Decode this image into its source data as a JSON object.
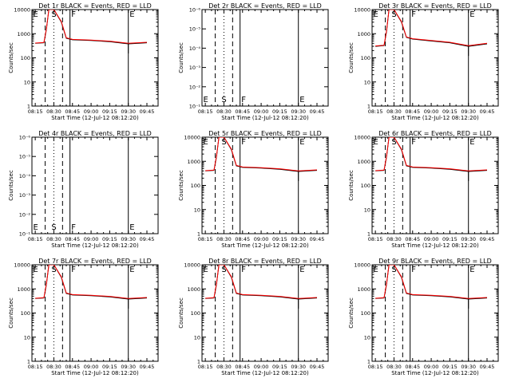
{
  "common": {
    "xlabel": "Start Time (12-Jul-12 08:12:20)",
    "ylabel": "Counts/sec",
    "xticks": [
      "08:15",
      "08:30",
      "08:45",
      "09:00",
      "09:15",
      "09:30",
      "09:45"
    ],
    "yticks_counts": [
      "1",
      "10",
      "100",
      "1000",
      "10000"
    ],
    "yticks_empty": [
      "10⁻¹",
      "10⁻²",
      "10⁻³",
      "10⁻⁴",
      "10⁻⁵",
      "10⁻⁶"
    ],
    "colors": {
      "events": "#000000",
      "lld": "#ff0000"
    }
  },
  "chart_data": [
    {
      "type": "line",
      "title": "Det 1r BLACK = Events, RED = LLD",
      "xlabel": "Start Time (12-Jul-12 08:12:20)",
      "ylabel": "Counts/sec",
      "yscale": "log",
      "ylim": [
        1,
        10000
      ],
      "xticks": [
        "08:15",
        "08:30",
        "08:45",
        "09:00",
        "09:15",
        "09:30",
        "09:45"
      ],
      "markers": [
        "E",
        "S",
        "F",
        "E"
      ],
      "series": [
        {
          "name": "Events",
          "color": "#000000",
          "x": [
            "08:15",
            "08:22",
            "08:24",
            "08:26",
            "08:30",
            "08:36",
            "08:40",
            "08:45",
            "09:00",
            "09:15",
            "09:30",
            "09:45"
          ],
          "values": [
            400,
            420,
            1500,
            10000,
            10000,
            3000,
            650,
            560,
            520,
            470,
            380,
            420
          ]
        },
        {
          "name": "LLD",
          "color": "#ff0000",
          "x": [
            "08:15",
            "08:22",
            "08:24",
            "08:26",
            "08:30",
            "08:36",
            "08:40",
            "08:45",
            "09:00",
            "09:15",
            "09:30",
            "09:45"
          ],
          "values": [
            410,
            430,
            1600,
            10000,
            10000,
            3200,
            680,
            580,
            540,
            490,
            400,
            440
          ]
        }
      ]
    },
    {
      "type": "line",
      "title": "Det 2r BLACK = Events, RED = LLD",
      "xlabel": "Start Time (12-Jul-12 08:12:20)",
      "ylabel": "Counts/sec",
      "yscale": "log",
      "xticks": [
        "08:15",
        "08:30",
        "08:45",
        "09:00",
        "09:15",
        "09:30",
        "09:45"
      ],
      "markers": [
        "E",
        "S",
        "F",
        "E"
      ],
      "series": []
    },
    {
      "type": "line",
      "title": "Det 3r BLACK = Events, RED = LLD",
      "xlabel": "Start Time (12-Jul-12 08:12:20)",
      "ylabel": "Counts/sec",
      "yscale": "log",
      "ylim": [
        1,
        10000
      ],
      "xticks": [
        "08:15",
        "08:30",
        "08:45",
        "09:00",
        "09:15",
        "09:30",
        "09:45"
      ],
      "markers": [
        "E",
        "S",
        "F",
        "E"
      ],
      "series": [
        {
          "name": "Events",
          "color": "#000000",
          "x": [
            "08:15",
            "08:22",
            "08:24",
            "08:26",
            "08:30",
            "08:36",
            "08:40",
            "08:45",
            "09:00",
            "09:15",
            "09:30",
            "09:45"
          ],
          "values": [
            300,
            320,
            1200,
            10000,
            10000,
            3000,
            700,
            600,
            500,
            420,
            300,
            380
          ]
        },
        {
          "name": "LLD",
          "color": "#ff0000",
          "x": [
            "08:15",
            "08:22",
            "08:24",
            "08:26",
            "08:30",
            "08:36",
            "08:40",
            "08:45",
            "09:00",
            "09:15",
            "09:30",
            "09:45"
          ],
          "values": [
            310,
            330,
            1300,
            10000,
            10000,
            3200,
            730,
            620,
            520,
            440,
            320,
            400
          ]
        }
      ]
    },
    {
      "type": "line",
      "title": "Det 4r BLACK = Events, RED = LLD",
      "xlabel": "Start Time (12-Jul-12 08:12:20)",
      "ylabel": "Counts/sec",
      "yscale": "log",
      "xticks": [
        "08:15",
        "08:30",
        "08:45",
        "09:00",
        "09:15",
        "09:30",
        "09:45"
      ],
      "markers": [
        "E",
        "S",
        "F",
        "E"
      ],
      "series": []
    },
    {
      "type": "line",
      "title": "Det 5r BLACK = Events, RED = LLD",
      "xlabel": "Start Time (12-Jul-12 08:12:20)",
      "ylabel": "Counts/sec",
      "yscale": "log",
      "ylim": [
        1,
        10000
      ],
      "xticks": [
        "08:15",
        "08:30",
        "08:45",
        "09:00",
        "09:15",
        "09:30",
        "09:45"
      ],
      "markers": [
        "E",
        "S",
        "F",
        "E"
      ],
      "series": [
        {
          "name": "Events",
          "color": "#000000",
          "x": [
            "08:15",
            "08:22",
            "08:24",
            "08:26",
            "08:30",
            "08:36",
            "08:40",
            "08:45",
            "09:00",
            "09:15",
            "09:30",
            "09:45"
          ],
          "values": [
            400,
            420,
            1500,
            10000,
            10000,
            3000,
            650,
            560,
            520,
            470,
            380,
            420
          ]
        },
        {
          "name": "LLD",
          "color": "#ff0000",
          "x": [
            "08:15",
            "08:22",
            "08:24",
            "08:26",
            "08:30",
            "08:36",
            "08:40",
            "08:45",
            "09:00",
            "09:15",
            "09:30",
            "09:45"
          ],
          "values": [
            410,
            430,
            1600,
            10000,
            10000,
            3200,
            680,
            580,
            540,
            490,
            400,
            440
          ]
        }
      ]
    },
    {
      "type": "line",
      "title": "Det 6r BLACK = Events, RED = LLD",
      "xlabel": "Start Time (12-Jul-12 08:12:20)",
      "ylabel": "Counts/sec",
      "yscale": "log",
      "ylim": [
        1,
        10000
      ],
      "xticks": [
        "08:15",
        "08:30",
        "08:45",
        "09:00",
        "09:15",
        "09:30",
        "09:45"
      ],
      "markers": [
        "E",
        "S",
        "F",
        "E"
      ],
      "series": [
        {
          "name": "Events",
          "color": "#000000",
          "x": [
            "08:15",
            "08:22",
            "08:24",
            "08:26",
            "08:30",
            "08:36",
            "08:40",
            "08:45",
            "09:00",
            "09:15",
            "09:30",
            "09:45"
          ],
          "values": [
            400,
            420,
            1500,
            10000,
            10000,
            3000,
            650,
            560,
            520,
            470,
            380,
            420
          ]
        },
        {
          "name": "LLD",
          "color": "#ff0000",
          "x": [
            "08:15",
            "08:22",
            "08:24",
            "08:26",
            "08:30",
            "08:36",
            "08:40",
            "08:45",
            "09:00",
            "09:15",
            "09:30",
            "09:45"
          ],
          "values": [
            410,
            430,
            1600,
            10000,
            10000,
            3200,
            680,
            580,
            540,
            490,
            400,
            440
          ]
        }
      ]
    },
    {
      "type": "line",
      "title": "Det 7r BLACK = Events, RED = LLD",
      "xlabel": "Start Time (12-Jul-12 08:12:20)",
      "ylabel": "Counts/sec",
      "yscale": "log",
      "ylim": [
        1,
        10000
      ],
      "xticks": [
        "08:15",
        "08:30",
        "08:45",
        "09:00",
        "09:15",
        "09:30",
        "09:45"
      ],
      "markers": [
        "E",
        "S",
        "F",
        "E"
      ],
      "series": [
        {
          "name": "Events",
          "color": "#000000",
          "x": [
            "08:15",
            "08:22",
            "08:24",
            "08:26",
            "08:30",
            "08:36",
            "08:40",
            "08:45",
            "09:00",
            "09:15",
            "09:30",
            "09:45"
          ],
          "values": [
            400,
            420,
            1500,
            10000,
            10000,
            3000,
            650,
            560,
            520,
            470,
            380,
            420
          ]
        },
        {
          "name": "LLD",
          "color": "#ff0000",
          "x": [
            "08:15",
            "08:22",
            "08:24",
            "08:26",
            "08:30",
            "08:36",
            "08:40",
            "08:45",
            "09:00",
            "09:15",
            "09:30",
            "09:45"
          ],
          "values": [
            410,
            430,
            1600,
            10000,
            10000,
            3200,
            680,
            580,
            540,
            490,
            400,
            440
          ]
        }
      ]
    },
    {
      "type": "line",
      "title": "Det 8r BLACK = Events, RED = LLD",
      "xlabel": "Start Time (12-Jul-12 08:12:20)",
      "ylabel": "Counts/sec",
      "yscale": "log",
      "ylim": [
        1,
        10000
      ],
      "xticks": [
        "08:15",
        "08:30",
        "08:45",
        "09:00",
        "09:15",
        "09:30",
        "09:45"
      ],
      "markers": [
        "E",
        "S",
        "F",
        "E"
      ],
      "series": [
        {
          "name": "Events",
          "color": "#000000",
          "x": [
            "08:15",
            "08:22",
            "08:24",
            "08:26",
            "08:30",
            "08:36",
            "08:40",
            "08:45",
            "09:00",
            "09:15",
            "09:30",
            "09:45"
          ],
          "values": [
            400,
            420,
            1500,
            10000,
            10000,
            3000,
            650,
            560,
            520,
            470,
            380,
            420
          ]
        },
        {
          "name": "LLD",
          "color": "#ff0000",
          "x": [
            "08:15",
            "08:22",
            "08:24",
            "08:26",
            "08:30",
            "08:36",
            "08:40",
            "08:45",
            "09:00",
            "09:15",
            "09:30",
            "09:45"
          ],
          "values": [
            410,
            430,
            1600,
            10000,
            10000,
            3200,
            680,
            580,
            540,
            490,
            400,
            440
          ]
        }
      ]
    },
    {
      "type": "line",
      "title": "Det 9r BLACK = Events, RED = LLD",
      "xlabel": "Start Time (12-Jul-12 08:12:20)",
      "ylabel": "Counts/sec",
      "yscale": "log",
      "ylim": [
        1,
        10000
      ],
      "xticks": [
        "08:15",
        "08:30",
        "08:45",
        "09:00",
        "09:15",
        "09:30",
        "09:45"
      ],
      "markers": [
        "E",
        "S",
        "F",
        "E"
      ],
      "series": [
        {
          "name": "Events",
          "color": "#000000",
          "x": [
            "08:15",
            "08:22",
            "08:24",
            "08:26",
            "08:30",
            "08:36",
            "08:40",
            "08:45",
            "09:00",
            "09:15",
            "09:30",
            "09:45"
          ],
          "values": [
            400,
            420,
            1500,
            10000,
            10000,
            3000,
            650,
            560,
            520,
            470,
            380,
            420
          ]
        },
        {
          "name": "LLD",
          "color": "#ff0000",
          "x": [
            "08:15",
            "08:22",
            "08:24",
            "08:26",
            "08:30",
            "08:36",
            "08:40",
            "08:45",
            "09:00",
            "09:15",
            "09:30",
            "09:45"
          ],
          "values": [
            410,
            430,
            1600,
            10000,
            10000,
            3200,
            680,
            580,
            540,
            490,
            400,
            440
          ]
        }
      ]
    }
  ]
}
